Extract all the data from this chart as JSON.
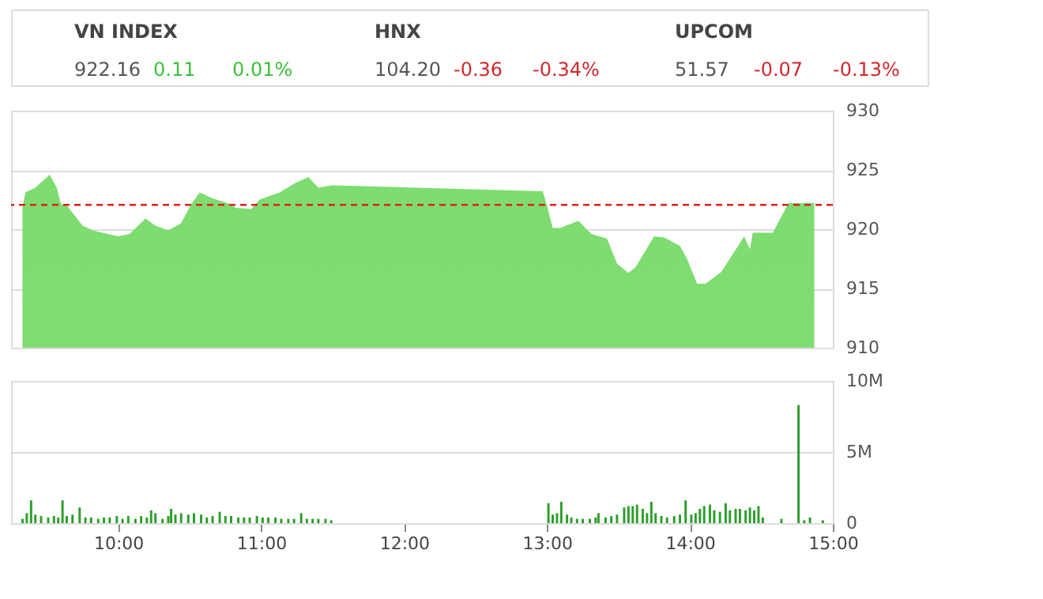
{
  "chart_data": [
    {
      "type": "other",
      "annotations": [
        "VN INDEX",
        "922.16",
        "0.11",
        "0.01%",
        "HNX",
        "104.20",
        "-0.36",
        "-0.34%",
        "UPCOM",
        "51.57",
        "-0.07",
        "-0.13%"
      ],
      "colors": [
        "#444444",
        "#555555",
        "#3cbf3c",
        "#3cbf3c",
        "#444444",
        "#555555",
        "#d0282e",
        "#d0282e",
        "#444444",
        "#555555",
        "#d0282e",
        "#d0282e"
      ]
    },
    {
      "type": "area",
      "x": [
        9.33,
        9.35,
        9.42,
        9.52,
        9.57,
        9.6,
        9.64,
        9.75,
        9.82,
        10.0,
        10.08,
        10.19,
        10.26,
        10.35,
        10.44,
        10.51,
        10.57,
        10.66,
        10.79,
        10.82,
        10.93,
        10.99,
        11.13,
        11.24,
        11.33,
        11.4,
        11.5,
        12.97,
        13.0,
        13.04,
        13.09,
        13.22,
        13.31,
        13.42,
        13.49,
        13.57,
        13.62,
        13.75,
        13.82,
        13.93,
        13.98,
        14.05,
        14.11,
        14.22,
        14.29,
        14.38,
        14.42,
        14.44,
        14.58,
        14.69,
        14.87
      ],
      "series": [
        {
          "color": "#7ddc6f",
          "values": [
            921.8,
            923.1,
            923.5,
            924.6,
            923.5,
            922.1,
            922.0,
            920.3,
            919.9,
            919.4,
            919.6,
            920.9,
            920.3,
            919.9,
            920.5,
            922.1,
            923.1,
            922.6,
            922.1,
            921.8,
            921.7,
            922.5,
            923.1,
            923.9,
            924.4,
            923.5,
            923.7,
            923.2,
            922.0,
            920.1,
            920.1,
            920.7,
            919.6,
            919.2,
            917.1,
            916.3,
            916.8,
            919.4,
            919.3,
            918.6,
            917.5,
            915.4,
            915.4,
            916.4,
            917.7,
            919.4,
            918.3,
            919.7,
            919.7,
            922.2,
            922.2
          ]
        }
      ],
      "xlim": [
        9.25,
        15
      ],
      "ylim": [
        910,
        930
      ],
      "yticks": [
        910,
        915,
        920,
        925,
        930
      ],
      "grid": "y",
      "tick_labels": "y",
      "ref_lines": [
        {
          "axis": "y",
          "value": 922.05,
          "color": "#e0201b",
          "line_style": "dashed"
        }
      ]
    },
    {
      "type": "bar",
      "x": [
        9.33,
        9.36,
        9.39,
        9.42,
        9.46,
        9.51,
        9.55,
        9.58,
        9.61,
        9.64,
        9.68,
        9.73,
        9.77,
        9.81,
        9.86,
        9.9,
        9.94,
        9.99,
        10.03,
        10.07,
        10.12,
        10.16,
        10.2,
        10.23,
        10.26,
        10.31,
        10.35,
        10.37,
        10.4,
        10.44,
        10.49,
        10.53,
        10.58,
        10.62,
        10.66,
        10.71,
        10.75,
        10.79,
        10.84,
        10.88,
        10.92,
        10.97,
        11.01,
        11.05,
        11.1,
        11.14,
        11.19,
        11.23,
        11.28,
        11.32,
        11.36,
        11.4,
        11.45,
        11.49,
        13.01,
        13.04,
        13.07,
        13.1,
        13.14,
        13.17,
        13.21,
        13.25,
        13.3,
        13.34,
        13.36,
        13.41,
        13.45,
        13.49,
        13.54,
        13.57,
        13.6,
        13.63,
        13.67,
        13.7,
        13.73,
        13.76,
        13.8,
        13.84,
        13.89,
        13.93,
        13.97,
        14.01,
        14.04,
        14.07,
        14.1,
        14.14,
        14.17,
        14.21,
        14.25,
        14.28,
        14.32,
        14.35,
        14.39,
        14.42,
        14.45,
        14.48,
        14.51,
        14.64,
        14.76,
        14.8,
        14.84,
        14.93
      ],
      "values": [
        0.3,
        0.7,
        1.6,
        0.6,
        0.5,
        0.4,
        0.5,
        0.4,
        1.6,
        0.5,
        0.6,
        1.1,
        0.4,
        0.4,
        0.3,
        0.4,
        0.4,
        0.5,
        0.3,
        0.5,
        0.3,
        0.5,
        0.4,
        0.9,
        0.7,
        0.3,
        0.5,
        1.0,
        0.6,
        0.7,
        0.6,
        0.7,
        0.6,
        0.4,
        0.5,
        0.8,
        0.5,
        0.5,
        0.4,
        0.4,
        0.4,
        0.5,
        0.4,
        0.4,
        0.4,
        0.3,
        0.3,
        0.3,
        0.7,
        0.3,
        0.3,
        0.3,
        0.3,
        0.2,
        1.4,
        0.6,
        0.7,
        1.5,
        0.6,
        0.4,
        0.3,
        0.3,
        0.3,
        0.4,
        0.7,
        0.4,
        0.5,
        0.6,
        1.1,
        1.2,
        1.2,
        1.3,
        1.0,
        0.7,
        1.5,
        0.7,
        0.5,
        0.4,
        0.5,
        0.6,
        1.6,
        0.6,
        0.7,
        1.0,
        1.2,
        1.3,
        0.9,
        0.8,
        1.4,
        0.9,
        1.0,
        1.0,
        0.9,
        1.1,
        0.9,
        1.2,
        0.4,
        0.3,
        8.3,
        0.2,
        0.4,
        0.2
      ],
      "color": "#2e9e2e",
      "xlim": [
        9.25,
        15
      ],
      "xticks": [
        {
          "value": 10,
          "label": "10:00"
        },
        {
          "value": 11,
          "label": "11:00"
        },
        {
          "value": 12,
          "label": "12:00"
        },
        {
          "value": 13,
          "label": "13:00"
        },
        {
          "value": 14,
          "label": "14:00"
        },
        {
          "value": 15,
          "label": "15:00"
        }
      ],
      "ylim": [
        0,
        10
      ],
      "yticks": [
        0,
        {
          "value": 5,
          "label": "5M"
        },
        {
          "value": 10,
          "label": "10M"
        }
      ],
      "grid": "y"
    }
  ]
}
